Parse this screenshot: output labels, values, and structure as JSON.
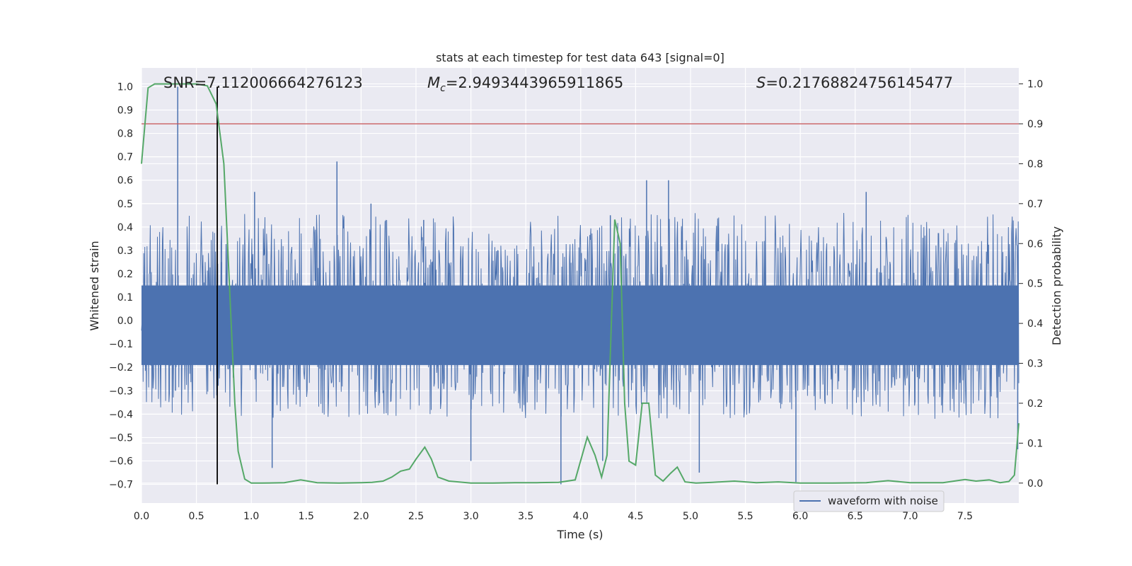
{
  "chart_data": {
    "type": "line",
    "title": "stats at each timestep for test data 643 [signal=0]",
    "xlabel": "Time (s)",
    "ylabel": "Whitened strain",
    "ylabel_right": "Detection probability",
    "xlim": [
      0.0,
      7.99
    ],
    "ylim": [
      -0.78,
      1.08
    ],
    "ylim_right": [
      -0.05,
      1.04
    ],
    "x_ticks": [
      "0.0",
      "0.5",
      "1.0",
      "1.5",
      "2.0",
      "2.5",
      "3.0",
      "3.5",
      "4.0",
      "4.5",
      "5.0",
      "5.5",
      "6.0",
      "6.5",
      "7.0",
      "7.5"
    ],
    "y_ticks": [
      "−0.7",
      "−0.6",
      "−0.5",
      "−0.4",
      "−0.3",
      "−0.2",
      "−0.1",
      "0.0",
      "0.1",
      "0.2",
      "0.3",
      "0.4",
      "0.5",
      "0.6",
      "0.7",
      "0.8",
      "0.9",
      "1.0"
    ],
    "y_ticks_right": [
      "0.0",
      "0.1",
      "0.2",
      "0.3",
      "0.4",
      "0.5",
      "0.6",
      "0.7",
      "0.8",
      "0.9",
      "1.0"
    ],
    "grid": true,
    "legend_position": "bottom-right",
    "annotations": {
      "snr": "SNR=7.112006664276123",
      "mc_symbol": "M",
      "mc_sub": "c",
      "mc_value": "=2.9493443965911865",
      "s_symbol": "S",
      "s_value": "=0.21768824756145477"
    },
    "series": [
      {
        "name": "waveform with noise",
        "axis": "left",
        "color": "#4c72b0",
        "description_stats": {
          "core_min": -0.19,
          "core_max": 0.15,
          "envelope_min": -0.3,
          "envelope_max": 0.32,
          "n_samples": 1600
        },
        "spikes": [
          [
            0.33,
            1.0
          ],
          [
            0.31,
            -0.3
          ],
          [
            1.19,
            -0.63
          ],
          [
            1.78,
            0.68
          ],
          [
            1.03,
            0.55
          ],
          [
            2.57,
            0.43
          ],
          [
            3.82,
            -0.7
          ],
          [
            4.2,
            -0.6
          ],
          [
            4.27,
            0.45
          ],
          [
            4.6,
            0.6
          ],
          [
            4.8,
            0.6
          ],
          [
            5.08,
            -0.65
          ],
          [
            5.96,
            -0.69
          ],
          [
            3.0,
            -0.6
          ],
          [
            6.6,
            0.55
          ],
          [
            7.98,
            -0.55
          ],
          [
            0.73,
            0.25
          ],
          [
            2.09,
            0.5
          ]
        ]
      },
      {
        "name": "",
        "axis": "right",
        "color": "#55a868",
        "points": [
          [
            0.0,
            0.8
          ],
          [
            0.06,
            0.99
          ],
          [
            0.12,
            1.0
          ],
          [
            0.2,
            1.0
          ],
          [
            0.3,
            1.0
          ],
          [
            0.4,
            1.0
          ],
          [
            0.5,
            1.0
          ],
          [
            0.6,
            0.995
          ],
          [
            0.68,
            0.95
          ],
          [
            0.75,
            0.8
          ],
          [
            0.8,
            0.5
          ],
          [
            0.85,
            0.2
          ],
          [
            0.88,
            0.08
          ],
          [
            0.94,
            0.01
          ],
          [
            1.0,
            0.0
          ],
          [
            1.1,
            0.0
          ],
          [
            1.3,
            0.001
          ],
          [
            1.45,
            0.008
          ],
          [
            1.6,
            0.001
          ],
          [
            1.8,
            0.0
          ],
          [
            2.0,
            0.001
          ],
          [
            2.1,
            0.002
          ],
          [
            2.2,
            0.005
          ],
          [
            2.28,
            0.015
          ],
          [
            2.36,
            0.03
          ],
          [
            2.44,
            0.035
          ],
          [
            2.5,
            0.06
          ],
          [
            2.58,
            0.09
          ],
          [
            2.64,
            0.06
          ],
          [
            2.7,
            0.015
          ],
          [
            2.8,
            0.005
          ],
          [
            3.0,
            0.0
          ],
          [
            3.2,
            0.0
          ],
          [
            3.4,
            0.001
          ],
          [
            3.6,
            0.001
          ],
          [
            3.8,
            0.002
          ],
          [
            3.95,
            0.008
          ],
          [
            4.06,
            0.115
          ],
          [
            4.13,
            0.07
          ],
          [
            4.19,
            0.015
          ],
          [
            4.24,
            0.07
          ],
          [
            4.31,
            0.66
          ],
          [
            4.36,
            0.6
          ],
          [
            4.4,
            0.2
          ],
          [
            4.44,
            0.055
          ],
          [
            4.5,
            0.045
          ],
          [
            4.56,
            0.2
          ],
          [
            4.62,
            0.2
          ],
          [
            4.68,
            0.02
          ],
          [
            4.75,
            0.005
          ],
          [
            4.82,
            0.025
          ],
          [
            4.88,
            0.04
          ],
          [
            4.95,
            0.003
          ],
          [
            5.05,
            0.0
          ],
          [
            5.2,
            0.002
          ],
          [
            5.4,
            0.005
          ],
          [
            5.6,
            0.001
          ],
          [
            5.8,
            0.003
          ],
          [
            6.0,
            0.0
          ],
          [
            6.3,
            0.0
          ],
          [
            6.6,
            0.001
          ],
          [
            6.8,
            0.006
          ],
          [
            7.0,
            0.001
          ],
          [
            7.3,
            0.001
          ],
          [
            7.5,
            0.009
          ],
          [
            7.6,
            0.005
          ],
          [
            7.72,
            0.008
          ],
          [
            7.82,
            0.001
          ],
          [
            7.9,
            0.004
          ],
          [
            7.95,
            0.02
          ],
          [
            7.99,
            0.15
          ]
        ]
      },
      {
        "name": "",
        "axis": "right",
        "type": "hline",
        "color": "#c44e52",
        "value": 0.9
      },
      {
        "name": "",
        "axis": "left",
        "type": "vline",
        "color": "#000000",
        "x": 0.69,
        "y_range": [
          -0.7,
          1.0
        ]
      }
    ]
  }
}
